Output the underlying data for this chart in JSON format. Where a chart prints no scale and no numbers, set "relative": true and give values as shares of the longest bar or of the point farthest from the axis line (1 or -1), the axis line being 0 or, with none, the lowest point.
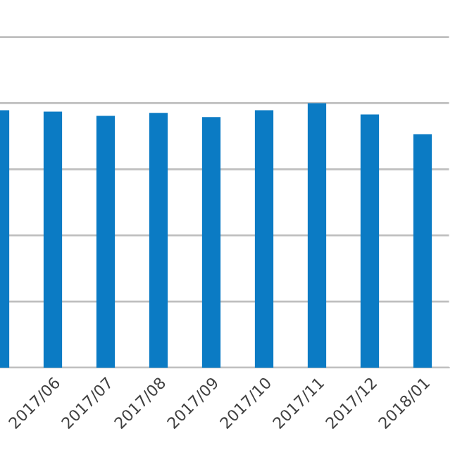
{
  "chart_data": {
    "type": "bar",
    "relative": true,
    "grid": "y",
    "categories": [
      null,
      "2017/06",
      "2017/07",
      "2017/08",
      "2017/09",
      "2017/10",
      "2017/11",
      "2017/12",
      "2018/01"
    ],
    "series": [
      {
        "color": "#0b7bc4",
        "values": [
          0.973,
          0.968,
          0.952,
          0.963,
          0.947,
          0.973,
          1.0,
          0.957,
          0.883
        ]
      }
    ]
  }
}
